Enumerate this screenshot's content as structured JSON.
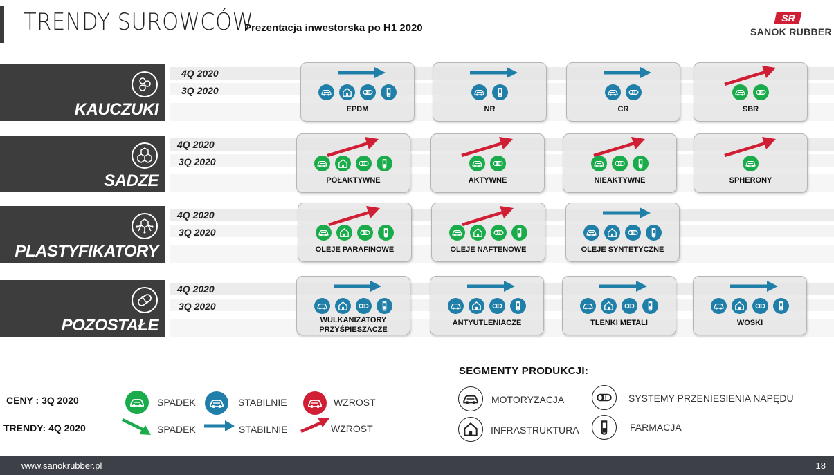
{
  "header": {
    "title": "TRENDY SUROWCÓW",
    "subtitle": "Prezentacja inwestorska po H1 2020",
    "logo_text": "SANOK RUBBER"
  },
  "colors": {
    "down_green": "#1aab4b",
    "stable_blue": "#1f7fa8",
    "up_red": "#d01f34",
    "category_bg": "#3d3d3d"
  },
  "sections": [
    {
      "label": "KAUCZUKI",
      "icon": "molecule-icon",
      "q4": "4Q 2020",
      "q3": "3Q 2020",
      "cards": [
        {
          "name": "EPDM",
          "trend": "stable",
          "price": "stable",
          "segments": [
            "car",
            "house",
            "belt",
            "vial"
          ]
        },
        {
          "name": "NR",
          "trend": "stable",
          "price": "stable",
          "segments": [
            "car",
            "vial"
          ]
        },
        {
          "name": "CR",
          "trend": "stable",
          "price": "stable",
          "segments": [
            "car",
            "belt"
          ]
        },
        {
          "name": "SBR",
          "trend": "up",
          "price": "down",
          "segments": [
            "car",
            "belt"
          ]
        }
      ]
    },
    {
      "label": "SADZE",
      "icon": "hexagon-cluster-icon",
      "q4": "4Q 2020",
      "q3": "3Q 2020",
      "cards": [
        {
          "name": "PÓŁAKTYWNE",
          "trend": "up",
          "price": "down",
          "segments": [
            "car",
            "house",
            "belt",
            "vial"
          ]
        },
        {
          "name": "AKTYWNE",
          "trend": "up",
          "price": "down",
          "segments": [
            "car",
            "belt"
          ]
        },
        {
          "name": "NIEAKTYWNE",
          "trend": "up",
          "price": "down",
          "segments": [
            "car",
            "belt",
            "vial"
          ]
        },
        {
          "name": "SPHERONY",
          "trend": "up",
          "price": "down",
          "segments": [
            "car"
          ]
        }
      ]
    },
    {
      "label": "PLASTYFIKATORY",
      "icon": "hexagon-network-icon",
      "q4": "4Q 2020",
      "q3": "3Q 2020",
      "cards": [
        {
          "name": "OLEJE PARAFINOWE",
          "trend": "up",
          "price": "down",
          "segments": [
            "car",
            "house",
            "belt",
            "vial"
          ]
        },
        {
          "name": "OLEJE NAFTENOWE",
          "trend": "up",
          "price": "down",
          "segments": [
            "car",
            "house",
            "belt",
            "vial"
          ]
        },
        {
          "name": "OLEJE SYNTETYCZNE",
          "trend": "stable",
          "price": "stable",
          "segments": [
            "car",
            "house",
            "belt",
            "vial"
          ]
        }
      ]
    },
    {
      "label": "POZOSTAŁE",
      "icon": "pill-icon",
      "q4": "4Q 2020",
      "q3": "3Q 2020",
      "cards": [
        {
          "name": "WULKANIZATORY\nPRZYŚPIESZACZE",
          "trend": "stable",
          "price": "stable",
          "segments": [
            "car",
            "house",
            "belt",
            "vial"
          ]
        },
        {
          "name": "ANTYUTLENIACZE",
          "trend": "stable",
          "price": "stable",
          "segments": [
            "car",
            "house",
            "belt",
            "vial"
          ]
        },
        {
          "name": "TLENKI METALI",
          "trend": "stable",
          "price": "stable",
          "segments": [
            "car",
            "house",
            "belt",
            "vial"
          ]
        },
        {
          "name": "WOSKI",
          "trend": "stable",
          "price": "stable",
          "segments": [
            "car",
            "house",
            "belt",
            "vial"
          ]
        }
      ]
    }
  ],
  "legend": {
    "prices_label": "CENY : 3Q 2020",
    "trends_label": "TRENDY:  4Q 2020",
    "down": "SPADEK",
    "stable": "STABILNIE",
    "up": "WZROST",
    "segments_title": "SEGMENTY PRODUKCJI:",
    "seg_auto": "MOTORYZACJA",
    "seg_infra": "INFRASTRUKTURA",
    "seg_drive": "SYSTEMY PRZENIESIENIA NAPĘDU",
    "seg_pharma": "FARMACJA"
  },
  "footer": {
    "url": "www.sanokrubber.pl",
    "page": "18"
  }
}
